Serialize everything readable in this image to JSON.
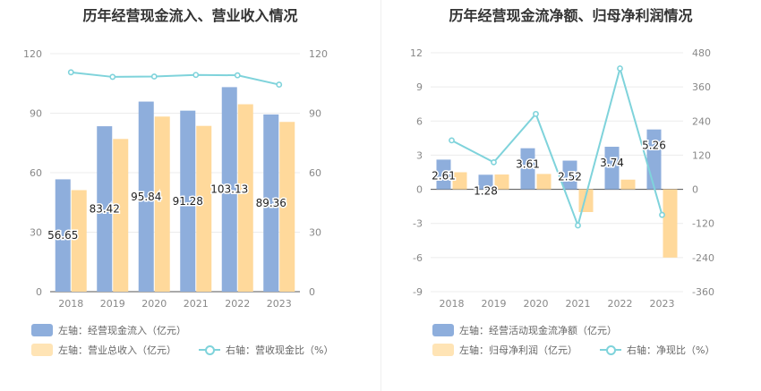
{
  "charts": [
    {
      "title": "历年经营现金流入、营业收入情况",
      "legend": [
        {
          "label": "左轴：经营现金流入（亿元）",
          "color": "#8eaedc",
          "kind": "rect"
        },
        {
          "label": "左轴：营业总收入（亿元）",
          "color": "#ffd99b",
          "kind": "rect"
        },
        {
          "label": "右轴：营收现金比（%）",
          "color": "#7fd3db",
          "kind": "line"
        }
      ]
    },
    {
      "title": "历年经营现金流净额、归母净利润情况",
      "legend": [
        {
          "label": "左轴：经营活动现金流净额（亿元）",
          "color": "#8eaedc",
          "kind": "rect"
        },
        {
          "label": "左轴：归母净利润（亿元）",
          "color": "#ffd99b",
          "kind": "rect"
        },
        {
          "label": "右轴：净现比（%）",
          "color": "#7fd3db",
          "kind": "line"
        }
      ]
    }
  ],
  "chart_data": [
    {
      "type": "bar",
      "title": "历年经营现金流入、营业收入情况",
      "categories": [
        "2018",
        "2019",
        "2020",
        "2021",
        "2022",
        "2023"
      ],
      "y_left": {
        "ticks": [
          "0",
          "30",
          "60",
          "90",
          "120"
        ],
        "min": 0,
        "max": 120
      },
      "y_right": {
        "ticks": [
          "0",
          "30",
          "60",
          "90",
          "120"
        ],
        "min": 0,
        "max": 120
      },
      "series": [
        {
          "name": "左轴：经营现金流入（亿元）",
          "axis": "left",
          "kind": "bar",
          "color": "#8eaedc",
          "values": [
            56.65,
            83.42,
            95.84,
            91.28,
            103.13,
            89.36
          ],
          "labels": [
            "56.65",
            "83.42",
            "95.84",
            "91.28",
            "103.13",
            "89.36"
          ]
        },
        {
          "name": "左轴：营业总收入（亿元）",
          "axis": "left",
          "kind": "bar",
          "color": "#ffd99b",
          "values": [
            51.2,
            77.0,
            88.3,
            83.6,
            94.5,
            85.6
          ]
        },
        {
          "name": "右轴：营收现金比（%）",
          "axis": "right",
          "kind": "line",
          "color": "#7fd3db",
          "values": [
            110.6,
            108.3,
            108.5,
            109.3,
            109.1,
            104.4
          ]
        }
      ],
      "grid": true,
      "legend_position": "bottom"
    },
    {
      "type": "bar",
      "title": "历年经营现金流净额、归母净利润情况",
      "categories": [
        "2018",
        "2019",
        "2020",
        "2021",
        "2022",
        "2023"
      ],
      "y_left": {
        "ticks": [
          "-9",
          "-6",
          "-3",
          "0",
          "3",
          "6",
          "9",
          "12"
        ],
        "min": -9,
        "max": 12
      },
      "y_right": {
        "ticks": [
          "-360",
          "-240",
          "-120",
          "0",
          "120",
          "240",
          "360",
          "480"
        ],
        "min": -360,
        "max": 480
      },
      "series": [
        {
          "name": "左轴：经营活动现金流净额（亿元）",
          "axis": "left",
          "kind": "bar",
          "color": "#8eaedc",
          "values": [
            2.61,
            1.28,
            3.61,
            2.52,
            3.74,
            5.26
          ],
          "labels": [
            "2.61",
            "1.28",
            "3.61",
            "2.52",
            "3.74",
            "5.26"
          ]
        },
        {
          "name": "左轴：归母净利润（亿元）",
          "axis": "left",
          "kind": "bar",
          "color": "#ffd99b",
          "values": [
            1.5,
            1.3,
            1.35,
            -2.0,
            0.85,
            -6.0
          ]
        },
        {
          "name": "右轴：净现比（%）",
          "axis": "right",
          "kind": "line",
          "color": "#7fd3db",
          "values": [
            172,
            95,
            265,
            -127,
            425,
            -90
          ]
        }
      ],
      "grid": true,
      "legend_position": "bottom"
    }
  ]
}
